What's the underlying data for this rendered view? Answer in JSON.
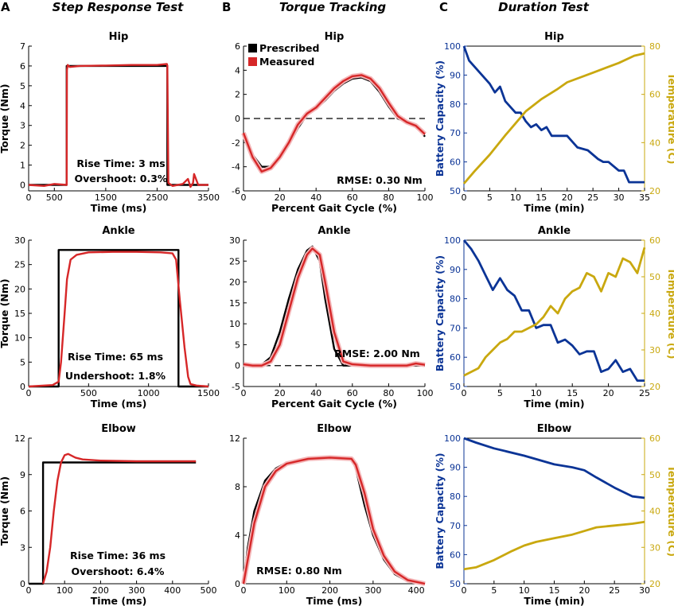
{
  "panel_labels": [
    "A",
    "B",
    "C"
  ],
  "column_titles": [
    "Step Response Test",
    "Torque Tracking",
    "Duration Test"
  ],
  "colors": {
    "prescribed": "#000000",
    "measured": "#d62728",
    "measured_band": "#f4b6b8",
    "battery": "#0b3496",
    "temperature": "#c9a80f"
  },
  "chart_data": [
    {
      "id": "step-hip",
      "type": "line",
      "title": "Hip",
      "xlabel": "Time (ms)",
      "ylabel": "Torque (Nm)",
      "xlim": [
        0,
        3500
      ],
      "ylim": [
        -0.3,
        7
      ],
      "xticks": [
        0,
        500,
        1500,
        2500,
        3500
      ],
      "yticks": [
        0,
        1,
        2,
        3,
        4,
        5,
        6,
        7
      ],
      "annotations": [
        "Rise Time: 3 ms",
        "Overshoot: 0.3%"
      ],
      "series": [
        {
          "name": "Prescribed",
          "color": "#000000",
          "x": [
            0,
            740,
            740,
            2700,
            2700,
            3500
          ],
          "y": [
            0,
            0,
            6,
            6,
            0,
            0
          ]
        },
        {
          "name": "Measured",
          "color": "#d62728",
          "x": [
            0,
            300,
            500,
            740,
            745,
            760,
            800,
            1000,
            1500,
            2000,
            2500,
            2690,
            2700,
            2720,
            2800,
            3000,
            3100,
            3150,
            3200,
            3220,
            3300,
            3500
          ],
          "y": [
            0,
            -0.05,
            0.05,
            0,
            5.8,
            6.05,
            5.95,
            6.0,
            6.02,
            6.05,
            6.05,
            6.1,
            6.0,
            0.1,
            -0.05,
            0.05,
            0.3,
            -0.1,
            0.1,
            0.55,
            0,
            0
          ]
        }
      ]
    },
    {
      "id": "step-ankle",
      "type": "line",
      "title": "Ankle",
      "xlabel": "Time (ms)",
      "ylabel": "Torque (Nm)",
      "xlim": [
        0,
        1500
      ],
      "ylim": [
        0,
        30
      ],
      "xticks": [
        0,
        500,
        1000,
        1500
      ],
      "yticks": [
        0,
        5,
        10,
        15,
        20,
        25,
        30
      ],
      "annotations": [
        "Rise Time: 65 ms",
        "Undershoot: 1.8%"
      ],
      "series": [
        {
          "name": "Prescribed",
          "color": "#000000",
          "x": [
            0,
            250,
            250,
            1250,
            1250,
            1500
          ],
          "y": [
            0,
            0,
            28,
            28,
            0,
            0
          ]
        },
        {
          "name": "Measured",
          "color": "#d62728",
          "x": [
            0,
            200,
            250,
            270,
            300,
            320,
            350,
            400,
            500,
            700,
            900,
            1100,
            1200,
            1230,
            1260,
            1300,
            1330,
            1350,
            1400,
            1500
          ],
          "y": [
            0,
            0.3,
            1,
            5,
            15,
            22,
            26,
            27,
            27.5,
            27.6,
            27.6,
            27.5,
            27.3,
            26,
            18,
            8,
            2,
            0.5,
            0.2,
            0
          ]
        }
      ]
    },
    {
      "id": "step-elbow",
      "type": "line",
      "title": "Elbow",
      "xlabel": "Time (ms)",
      "ylabel": "Torque (Nm)",
      "xlim": [
        0,
        500
      ],
      "ylim": [
        0,
        12
      ],
      "xticks": [
        0,
        100,
        200,
        300,
        400,
        500
      ],
      "yticks": [
        0,
        3,
        6,
        9,
        12
      ],
      "annotations": [
        "Rise Time: 36 ms",
        "Overshoot: 6.4%"
      ],
      "series": [
        {
          "name": "Prescribed",
          "color": "#000000",
          "x": [
            0,
            40,
            40,
            465
          ],
          "y": [
            0,
            0,
            10,
            10
          ]
        },
        {
          "name": "Measured",
          "color": "#d62728",
          "x": [
            40,
            50,
            60,
            70,
            80,
            90,
            100,
            110,
            130,
            150,
            200,
            300,
            400,
            465
          ],
          "y": [
            0,
            1,
            3,
            6,
            8.5,
            10,
            10.6,
            10.7,
            10.4,
            10.25,
            10.15,
            10.1,
            10.1,
            10.1
          ]
        }
      ]
    },
    {
      "id": "track-hip",
      "type": "line",
      "title": "Hip",
      "xlabel": "Percent Gait Cycle (%)",
      "ylabel": "",
      "xlim": [
        0,
        100
      ],
      "ylim": [
        -6,
        6
      ],
      "xticks": [
        0,
        20,
        40,
        60,
        80,
        100
      ],
      "yticks": [
        -6,
        -4,
        -2,
        0,
        2,
        4,
        6
      ],
      "dashed_zero": true,
      "legend": {
        "position": "top-left",
        "entries": [
          "Prescribed",
          "Measured"
        ]
      },
      "annotations": [
        "RMSE: 0.30 Nm"
      ],
      "series": [
        {
          "name": "Prescribed",
          "color": "#000000",
          "x": [
            0,
            5,
            10,
            15,
            20,
            25,
            30,
            35,
            40,
            45,
            50,
            55,
            60,
            65,
            70,
            75,
            80,
            85,
            90,
            95,
            100
          ],
          "y": [
            -1.5,
            -3.0,
            -4.0,
            -4.0,
            -3.3,
            -2.2,
            -0.8,
            0.3,
            0.8,
            1.5,
            2.3,
            2.9,
            3.3,
            3.4,
            3.1,
            2.2,
            1.0,
            0.0,
            -0.3,
            -0.5,
            -1.5
          ]
        },
        {
          "name": "Measured",
          "color": "#d62728",
          "x": [
            0,
            5,
            10,
            15,
            20,
            25,
            30,
            35,
            40,
            45,
            50,
            55,
            60,
            65,
            70,
            75,
            80,
            85,
            90,
            95,
            100
          ],
          "y": [
            -1.2,
            -3.2,
            -4.4,
            -4.1,
            -3.2,
            -2.0,
            -0.5,
            0.4,
            0.9,
            1.7,
            2.5,
            3.1,
            3.5,
            3.6,
            3.3,
            2.5,
            1.3,
            0.2,
            -0.3,
            -0.6,
            -1.3
          ]
        }
      ]
    },
    {
      "id": "track-ankle",
      "type": "line",
      "title": "Ankle",
      "xlabel": "Percent Gait Cycle (%)",
      "ylabel": "",
      "xlim": [
        0,
        100
      ],
      "ylim": [
        -5,
        30
      ],
      "xticks": [
        0,
        20,
        40,
        60,
        80,
        100
      ],
      "yticks": [
        -5,
        0,
        5,
        10,
        15,
        20,
        25,
        30
      ],
      "dashed_zero": true,
      "annotations": [
        "RMSE: 2.00 Nm"
      ],
      "series": [
        {
          "name": "Prescribed",
          "color": "#000000",
          "x": [
            0,
            5,
            10,
            15,
            20,
            25,
            30,
            35,
            38,
            42,
            45,
            50,
            55,
            60,
            70,
            80,
            90,
            100
          ],
          "y": [
            0,
            0,
            0.2,
            2,
            8,
            16,
            23,
            27.5,
            28.5,
            25,
            16,
            4,
            0,
            0,
            0,
            0,
            0,
            0
          ]
        },
        {
          "name": "Measured",
          "color": "#d62728",
          "x": [
            0,
            5,
            10,
            15,
            20,
            25,
            30,
            35,
            38,
            42,
            45,
            50,
            55,
            60,
            70,
            80,
            90,
            95,
            100
          ],
          "y": [
            0.3,
            0,
            0,
            1,
            5,
            13,
            21,
            26.5,
            28,
            26.5,
            20,
            8,
            1,
            0.3,
            0,
            0,
            0,
            0.5,
            0.2
          ]
        }
      ]
    },
    {
      "id": "track-elbow",
      "type": "line",
      "title": "Elbow",
      "xlabel": "Time (ms)",
      "ylabel": "",
      "xlim": [
        0,
        420
      ],
      "ylim": [
        0,
        12
      ],
      "xticks": [
        0,
        100,
        200,
        300,
        400
      ],
      "yticks": [
        0,
        4,
        8,
        12
      ],
      "annotations": [
        "RMSE: 0.80 Nm"
      ],
      "series": [
        {
          "name": "Prescribed",
          "color": "#000000",
          "x": [
            0,
            10,
            25,
            50,
            75,
            100,
            150,
            200,
            250,
            260,
            280,
            300,
            325,
            350,
            380,
            420
          ],
          "y": [
            0,
            3,
            6,
            8.5,
            9.5,
            10,
            10.3,
            10.4,
            10.4,
            9.5,
            6.5,
            4,
            2,
            0.8,
            0.2,
            0
          ]
        },
        {
          "name": "Measured",
          "color": "#d62728",
          "x": [
            0,
            10,
            25,
            50,
            75,
            100,
            150,
            200,
            250,
            260,
            280,
            300,
            325,
            350,
            380,
            420
          ],
          "y": [
            0,
            2,
            5,
            8,
            9.3,
            9.9,
            10.3,
            10.4,
            10.3,
            9.8,
            7.5,
            4.5,
            2.3,
            1,
            0.3,
            0
          ]
        }
      ]
    },
    {
      "id": "dur-hip",
      "type": "line",
      "title": "Hip",
      "xlabel": "Time (min)",
      "ylabel": "Battery Capacity (%)",
      "y2label": "Temperature (C)",
      "xlim": [
        0,
        35
      ],
      "ylim": [
        50,
        100
      ],
      "y2lim": [
        20,
        80
      ],
      "xticks": [
        0,
        5,
        10,
        15,
        20,
        25,
        30,
        35
      ],
      "yticks": [
        50,
        60,
        70,
        80,
        90,
        100
      ],
      "y2ticks": [
        20,
        40,
        60,
        80
      ],
      "series": [
        {
          "name": "Battery Capacity",
          "axis": "left",
          "color": "#0b3496",
          "x": [
            0,
            1,
            3,
            5,
            6,
            7,
            8,
            9,
            10,
            11,
            12,
            13,
            14,
            15,
            16,
            17,
            18,
            20,
            22,
            24,
            26,
            27,
            28,
            30,
            31,
            32,
            35
          ],
          "y": [
            100,
            95,
            91,
            87,
            84,
            86,
            81,
            79,
            77,
            77,
            74,
            72,
            73,
            71,
            72,
            69,
            69,
            69,
            65,
            64,
            61,
            60,
            60,
            57,
            57,
            53,
            53
          ]
        },
        {
          "name": "Temperature",
          "axis": "right",
          "color": "#c9a80f",
          "x": [
            0,
            2,
            5,
            8,
            10,
            12,
            15,
            18,
            20,
            25,
            30,
            33,
            35
          ],
          "y": [
            23,
            28,
            35,
            43,
            48,
            53,
            58,
            62,
            65,
            69,
            73,
            76,
            77
          ]
        }
      ]
    },
    {
      "id": "dur-ankle",
      "type": "line",
      "title": "Ankle",
      "xlabel": "Time (min)",
      "ylabel": "Battery Capacity (%)",
      "y2label": "Temperature (C)",
      "xlim": [
        0,
        25
      ],
      "ylim": [
        50,
        100
      ],
      "y2lim": [
        20,
        60
      ],
      "xticks": [
        0,
        5,
        10,
        15,
        20,
        25
      ],
      "yticks": [
        50,
        60,
        70,
        80,
        90,
        100
      ],
      "y2ticks": [
        20,
        30,
        40,
        50,
        60
      ],
      "series": [
        {
          "name": "Battery Capacity",
          "axis": "left",
          "color": "#0b3496",
          "x": [
            0,
            1,
            2,
            3,
            4,
            5,
            6,
            7,
            8,
            9,
            10,
            11,
            12,
            13,
            14,
            15,
            16,
            17,
            18,
            19,
            20,
            21,
            22,
            23,
            24,
            25
          ],
          "y": [
            100,
            97,
            93,
            88,
            83,
            87,
            83,
            81,
            76,
            76,
            70,
            71,
            71,
            65,
            66,
            64,
            61,
            62,
            62,
            55,
            56,
            59,
            55,
            56,
            52,
            52
          ]
        },
        {
          "name": "Temperature",
          "axis": "right",
          "color": "#c9a80f",
          "x": [
            0,
            1,
            2,
            3,
            4,
            5,
            6,
            7,
            8,
            9,
            10,
            11,
            12,
            13,
            14,
            15,
            16,
            17,
            18,
            19,
            20,
            21,
            22,
            23,
            24,
            25
          ],
          "y": [
            23,
            24,
            25,
            28,
            30,
            32,
            33,
            35,
            35,
            36,
            37,
            39,
            42,
            40,
            44,
            46,
            47,
            51,
            50,
            46,
            51,
            50,
            55,
            54,
            51,
            58
          ]
        }
      ]
    },
    {
      "id": "dur-elbow",
      "type": "line",
      "title": "Elbow",
      "xlabel": "Time (min)",
      "ylabel": "Battery Capacity (%)",
      "y2label": "Temperature (C)",
      "xlim": [
        0,
        30
      ],
      "ylim": [
        50,
        100
      ],
      "y2lim": [
        20,
        60
      ],
      "xticks": [
        0,
        5,
        10,
        15,
        20,
        25,
        30
      ],
      "yticks": [
        50,
        60,
        70,
        80,
        90,
        100
      ],
      "y2ticks": [
        20,
        30,
        40,
        50,
        60
      ],
      "series": [
        {
          "name": "Battery Capacity",
          "axis": "left",
          "color": "#0b3496",
          "x": [
            0,
            2,
            5,
            10,
            15,
            18,
            20,
            22,
            25,
            28,
            30
          ],
          "y": [
            100,
            98.5,
            96.5,
            94,
            91,
            90,
            89,
            86.5,
            83,
            80,
            79.5
          ]
        },
        {
          "name": "Temperature",
          "axis": "right",
          "color": "#c9a80f",
          "x": [
            0,
            2,
            5,
            8,
            10,
            12,
            15,
            18,
            20,
            22,
            25,
            28,
            30
          ],
          "y": [
            24,
            24.5,
            26.5,
            29,
            30.5,
            31.5,
            32.5,
            33.5,
            34.5,
            35.5,
            36,
            36.5,
            37
          ]
        }
      ]
    }
  ]
}
